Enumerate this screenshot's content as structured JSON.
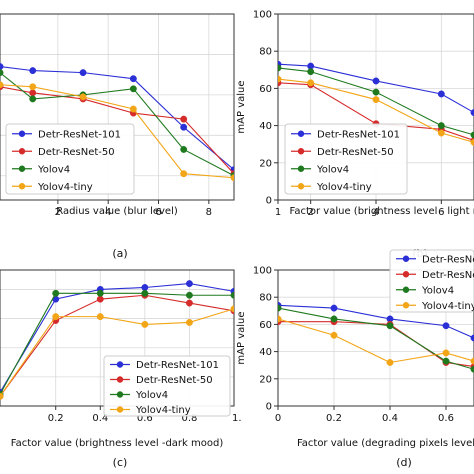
{
  "colors": {
    "Detr-ResNet-101": "#2b2fd6",
    "Detr-ResNet-50": "#d62b2b",
    "Yolov4": "#1f7a1f",
    "Yolov4-tiny": "#f2a516"
  },
  "chart_data": [
    {
      "type": "line",
      "panel_label": "(a)",
      "xlabel": "Radius value (blur level)",
      "ylabel": "",
      "xlim": [
        -0.3,
        9.0
      ],
      "ylim": [
        8,
        100
      ],
      "xticks": [
        2,
        4,
        6,
        8
      ],
      "yticks": [],
      "grid": true,
      "legend_position": "bottom-left",
      "series": [
        {
          "name": "Detr-ResNet-101",
          "x": [
            -0.3,
            1,
            3,
            5,
            7,
            9
          ],
          "y": [
            74,
            72,
            71,
            68,
            44,
            23
          ]
        },
        {
          "name": "Detr-ResNet-50",
          "x": [
            -0.3,
            1,
            3,
            5,
            7,
            9
          ],
          "y": [
            64,
            61,
            58,
            51,
            48,
            21
          ]
        },
        {
          "name": "Yolov4",
          "x": [
            -0.3,
            1,
            3,
            5,
            7,
            9
          ],
          "y": [
            71,
            58,
            60,
            63,
            33,
            20
          ]
        },
        {
          "name": "Yolov4-tiny",
          "x": [
            -0.3,
            1,
            3,
            5,
            7,
            9
          ],
          "y": [
            65,
            64,
            59,
            53,
            21,
            19
          ]
        }
      ]
    },
    {
      "type": "line",
      "panel_label": "(b)",
      "xlabel": "Factor value (brightness level - light m",
      "ylabel": "mAP value",
      "xlim": [
        1,
        7
      ],
      "ylim": [
        0,
        100
      ],
      "xticks": [
        1,
        2,
        4,
        6
      ],
      "yticks": [
        0,
        20,
        40,
        60,
        80,
        100
      ],
      "grid": true,
      "legend_position": "bottom-left",
      "series": [
        {
          "name": "Detr-ResNet-101",
          "x": [
            1,
            2,
            4,
            6,
            7
          ],
          "y": [
            73,
            72,
            64,
            57,
            47
          ]
        },
        {
          "name": "Detr-ResNet-50",
          "x": [
            1,
            2,
            4,
            6,
            7
          ],
          "y": [
            63,
            62,
            41,
            38,
            32
          ]
        },
        {
          "name": "Yolov4",
          "x": [
            1,
            2,
            4,
            6,
            7
          ],
          "y": [
            71,
            69,
            58,
            40,
            35
          ]
        },
        {
          "name": "Yolov4-tiny",
          "x": [
            1,
            2,
            4,
            6,
            7
          ],
          "y": [
            65,
            63,
            54,
            36,
            31
          ]
        }
      ]
    },
    {
      "type": "line",
      "panel_label": "(c)",
      "xlabel": "Factor value (brightness level -dark mood)",
      "ylabel": "",
      "xlim": [
        -0.05,
        1.0
      ],
      "ylim": [
        15,
        85
      ],
      "xticks": [
        0.2,
        0.4,
        0.6,
        0.8
      ],
      "xtick_labels": [
        "0.2",
        "0.4",
        "0.6",
        "0.8"
      ],
      "extra_xtick_label": "1.",
      "yticks": [],
      "grid": true,
      "legend_position": "bottom-right",
      "series": [
        {
          "name": "Detr-ResNet-101",
          "x": [
            -0.05,
            0.2,
            0.4,
            0.6,
            0.8,
            1.0
          ],
          "y": [
            22,
            70,
            75,
            76,
            78,
            74
          ]
        },
        {
          "name": "Detr-ResNet-50",
          "x": [
            -0.05,
            0.2,
            0.4,
            0.6,
            0.8,
            1.0
          ],
          "y": [
            20,
            59,
            70,
            72,
            68,
            64
          ]
        },
        {
          "name": "Yolov4",
          "x": [
            -0.05,
            0.2,
            0.4,
            0.6,
            0.8,
            1.0
          ],
          "y": [
            21,
            73,
            73,
            73,
            72,
            72
          ]
        },
        {
          "name": "Yolov4-tiny",
          "x": [
            -0.05,
            0.2,
            0.4,
            0.6,
            0.8,
            1.0
          ],
          "y": [
            20,
            61,
            61,
            57,
            58,
            65
          ]
        }
      ]
    },
    {
      "type": "line",
      "panel_label": "(d)",
      "xlabel": "Factor value (degrading pixels level",
      "ylabel": "mAP value",
      "xlim": [
        0,
        0.7
      ],
      "ylim": [
        0,
        100
      ],
      "xticks": [
        0.0,
        0.2,
        0.4,
        0.6
      ],
      "yticks": [
        0,
        20,
        40,
        60,
        80,
        100
      ],
      "grid": true,
      "legend_position": "top-right",
      "legend_labels": [
        "Detr-ResNe",
        "Detr-ResNe",
        "Yolov4",
        "Yolov4-tiny"
      ],
      "series": [
        {
          "name": "Detr-ResNet-101",
          "x": [
            0,
            0.2,
            0.4,
            0.6,
            0.7
          ],
          "y": [
            74,
            72,
            64,
            59,
            50
          ]
        },
        {
          "name": "Detr-ResNet-50",
          "x": [
            0,
            0.2,
            0.4,
            0.6,
            0.7
          ],
          "y": [
            62,
            62,
            60,
            32,
            29
          ]
        },
        {
          "name": "Yolov4",
          "x": [
            0,
            0.2,
            0.4,
            0.6,
            0.7
          ],
          "y": [
            72,
            64,
            59,
            33,
            27
          ]
        },
        {
          "name": "Yolov4-tiny",
          "x": [
            0,
            0.2,
            0.4,
            0.6,
            0.7
          ],
          "y": [
            64,
            52,
            32,
            39,
            33
          ]
        }
      ]
    }
  ]
}
